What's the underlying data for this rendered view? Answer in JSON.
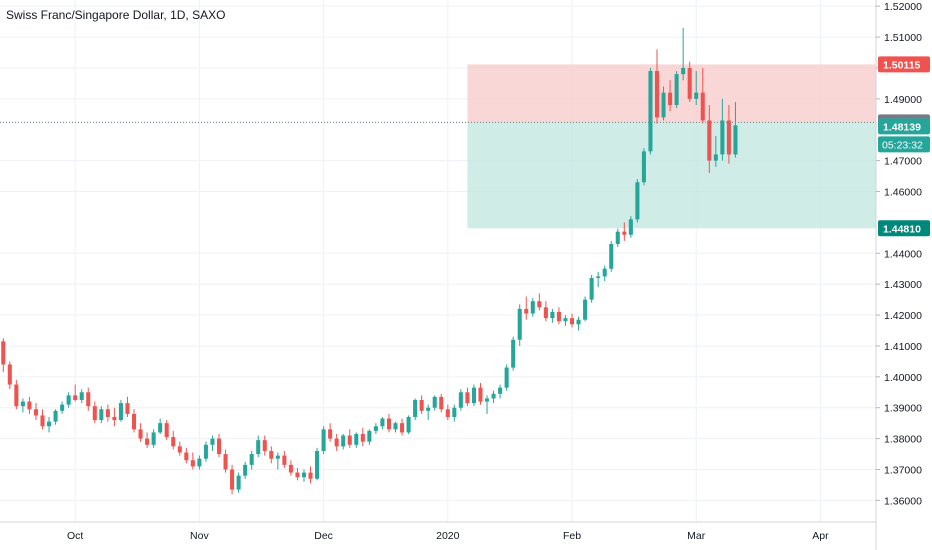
{
  "header": {
    "title": "Swiss Franc/Singapore Dollar, 1D, SAXO"
  },
  "colors": {
    "up": "#26a69a",
    "down": "#ef5350",
    "grid": "#eef1f5",
    "axis_text": "#131722",
    "stop_zone": "#f8c9c9",
    "target_zone": "#bfe6df",
    "stop_label": "#ef5350",
    "entry_label": "#787b86",
    "target_label": "#00897b",
    "last_label": "#26a69a",
    "timer_label": "#26a69a"
  },
  "chart_data": {
    "type": "candlestick",
    "title": "Swiss Franc/Singapore Dollar, 1D, SAXO",
    "y_ticks": [
      "1.52000",
      "1.51000",
      "1.50000",
      "1.49000",
      "1.47000",
      "1.46000",
      "1.44000",
      "1.43000",
      "1.42000",
      "1.41000",
      "1.40000",
      "1.39000",
      "1.38000",
      "1.37000",
      "1.36000"
    ],
    "x_ticks": [
      "Oct",
      "Nov",
      "Dec",
      "2020",
      "Feb",
      "Mar",
      "Apr"
    ],
    "ylim": [
      1.353,
      1.522
    ],
    "price_labels": {
      "stop": "1.50115",
      "entry": "1.48237",
      "last": "1.48139",
      "timer": "05:23:32",
      "target": "1.44810"
    },
    "zones": {
      "stop": [
        1.48237,
        1.50115
      ],
      "target": [
        1.4481,
        1.48237
      ]
    },
    "candles": [
      [
        1.4115,
        1.4125,
        1.4015,
        1.404
      ],
      [
        1.404,
        1.405,
        1.396,
        1.3975
      ],
      [
        1.3975,
        1.399,
        1.3895,
        1.3905
      ],
      [
        1.3905,
        1.393,
        1.3885,
        1.392
      ],
      [
        1.392,
        1.3935,
        1.388,
        1.3895
      ],
      [
        1.3895,
        1.3915,
        1.386,
        1.3875
      ],
      [
        1.3875,
        1.3895,
        1.383,
        1.384
      ],
      [
        1.384,
        1.387,
        1.382,
        1.3855
      ],
      [
        1.3855,
        1.3895,
        1.3845,
        1.389
      ],
      [
        1.389,
        1.392,
        1.388,
        1.391
      ],
      [
        1.391,
        1.395,
        1.39,
        1.394
      ],
      [
        1.394,
        1.3975,
        1.392,
        1.3925
      ],
      [
        1.3925,
        1.396,
        1.3915,
        1.395
      ],
      [
        1.395,
        1.3965,
        1.389,
        1.3905
      ],
      [
        1.3905,
        1.392,
        1.385,
        1.386
      ],
      [
        1.386,
        1.3905,
        1.385,
        1.3895
      ],
      [
        1.3895,
        1.391,
        1.3855,
        1.387
      ],
      [
        1.387,
        1.39,
        1.384,
        1.386
      ],
      [
        1.386,
        1.3925,
        1.3855,
        1.3915
      ],
      [
        1.3915,
        1.3935,
        1.387,
        1.388
      ],
      [
        1.388,
        1.3895,
        1.382,
        1.383
      ],
      [
        1.383,
        1.385,
        1.379,
        1.38
      ],
      [
        1.38,
        1.382,
        1.377,
        1.378
      ],
      [
        1.378,
        1.383,
        1.377,
        1.382
      ],
      [
        1.382,
        1.3865,
        1.3815,
        1.385
      ],
      [
        1.385,
        1.386,
        1.3795,
        1.3805
      ],
      [
        1.3805,
        1.3825,
        1.3765,
        1.3775
      ],
      [
        1.3775,
        1.379,
        1.3745,
        1.3755
      ],
      [
        1.3755,
        1.377,
        1.372,
        1.373
      ],
      [
        1.373,
        1.3755,
        1.37,
        1.371
      ],
      [
        1.371,
        1.3745,
        1.37,
        1.3735
      ],
      [
        1.3735,
        1.379,
        1.3725,
        1.378
      ],
      [
        1.378,
        1.381,
        1.376,
        1.38
      ],
      [
        1.38,
        1.3815,
        1.374,
        1.375
      ],
      [
        1.375,
        1.3765,
        1.369,
        1.37
      ],
      [
        1.37,
        1.3715,
        1.362,
        1.3635
      ],
      [
        1.3635,
        1.369,
        1.3625,
        1.368
      ],
      [
        1.368,
        1.3725,
        1.367,
        1.3715
      ],
      [
        1.3715,
        1.376,
        1.37,
        1.375
      ],
      [
        1.375,
        1.381,
        1.374,
        1.3795
      ],
      [
        1.3795,
        1.381,
        1.3745,
        1.376
      ],
      [
        1.376,
        1.3775,
        1.372,
        1.3735
      ],
      [
        1.3735,
        1.3755,
        1.37,
        1.3745
      ],
      [
        1.3745,
        1.376,
        1.3705,
        1.3715
      ],
      [
        1.3715,
        1.373,
        1.368,
        1.369
      ],
      [
        1.369,
        1.3705,
        1.3665,
        1.3675
      ],
      [
        1.3675,
        1.37,
        1.366,
        1.369
      ],
      [
        1.369,
        1.371,
        1.3655,
        1.367
      ],
      [
        1.367,
        1.377,
        1.3665,
        1.376
      ],
      [
        1.376,
        1.384,
        1.375,
        1.383
      ],
      [
        1.383,
        1.385,
        1.379,
        1.38
      ],
      [
        1.38,
        1.3815,
        1.376,
        1.3775
      ],
      [
        1.3775,
        1.3815,
        1.3765,
        1.381
      ],
      [
        1.381,
        1.383,
        1.377,
        1.378
      ],
      [
        1.378,
        1.382,
        1.377,
        1.3815
      ],
      [
        1.3815,
        1.3835,
        1.3775,
        1.379
      ],
      [
        1.379,
        1.383,
        1.378,
        1.3825
      ],
      [
        1.3825,
        1.385,
        1.3815,
        1.384
      ],
      [
        1.384,
        1.387,
        1.383,
        1.3865
      ],
      [
        1.3865,
        1.388,
        1.382,
        1.383
      ],
      [
        1.383,
        1.3855,
        1.382,
        1.385
      ],
      [
        1.385,
        1.3865,
        1.381,
        1.382
      ],
      [
        1.382,
        1.3875,
        1.3815,
        1.387
      ],
      [
        1.387,
        1.393,
        1.386,
        1.3925
      ],
      [
        1.3925,
        1.394,
        1.388,
        1.389
      ],
      [
        1.389,
        1.391,
        1.386,
        1.39
      ],
      [
        1.39,
        1.394,
        1.389,
        1.3935
      ],
      [
        1.3935,
        1.3945,
        1.3885,
        1.3895
      ],
      [
        1.3895,
        1.391,
        1.386,
        1.387
      ],
      [
        1.387,
        1.391,
        1.3855,
        1.39
      ],
      [
        1.39,
        1.396,
        1.389,
        1.395
      ],
      [
        1.395,
        1.3965,
        1.3905,
        1.3915
      ],
      [
        1.3915,
        1.3975,
        1.3905,
        1.3965
      ],
      [
        1.3965,
        1.398,
        1.391,
        1.392
      ],
      [
        1.392,
        1.394,
        1.388,
        1.393
      ],
      [
        1.393,
        1.3955,
        1.3915,
        1.3945
      ],
      [
        1.3945,
        1.3975,
        1.393,
        1.3965
      ],
      [
        1.3965,
        1.404,
        1.3955,
        1.403
      ],
      [
        1.403,
        1.413,
        1.402,
        1.412
      ],
      [
        1.412,
        1.4235,
        1.41,
        1.422
      ],
      [
        1.422,
        1.426,
        1.4185,
        1.4205
      ],
      [
        1.4205,
        1.4255,
        1.4195,
        1.4245
      ],
      [
        1.4245,
        1.427,
        1.4215,
        1.4225
      ],
      [
        1.4225,
        1.4245,
        1.418,
        1.419
      ],
      [
        1.419,
        1.422,
        1.4175,
        1.421
      ],
      [
        1.421,
        1.4225,
        1.417,
        1.418
      ],
      [
        1.418,
        1.42,
        1.4165,
        1.419
      ],
      [
        1.419,
        1.4205,
        1.416,
        1.417
      ],
      [
        1.417,
        1.4195,
        1.415,
        1.4185
      ],
      [
        1.4185,
        1.426,
        1.418,
        1.425
      ],
      [
        1.425,
        1.433,
        1.424,
        1.432
      ],
      [
        1.432,
        1.434,
        1.429,
        1.4325
      ],
      [
        1.4325,
        1.436,
        1.431,
        1.435
      ],
      [
        1.435,
        1.444,
        1.434,
        1.443
      ],
      [
        1.443,
        1.448,
        1.442,
        1.447
      ],
      [
        1.447,
        1.45,
        1.444,
        1.446
      ],
      [
        1.446,
        1.452,
        1.445,
        1.451
      ],
      [
        1.451,
        1.464,
        1.45,
        1.463
      ],
      [
        1.463,
        1.474,
        1.462,
        1.473
      ],
      [
        1.473,
        1.5,
        1.472,
        1.499
      ],
      [
        1.499,
        1.506,
        1.482,
        1.484
      ],
      [
        1.484,
        1.494,
        1.483,
        1.492
      ],
      [
        1.492,
        1.496,
        1.486,
        1.488
      ],
      [
        1.488,
        1.499,
        1.487,
        1.498
      ],
      [
        1.498,
        1.513,
        1.496,
        1.5
      ],
      [
        1.5,
        1.502,
        1.489,
        1.49
      ],
      [
        1.49,
        1.499,
        1.488,
        1.492
      ],
      [
        1.492,
        1.5,
        1.482,
        1.483
      ],
      [
        1.483,
        1.488,
        1.466,
        1.47
      ],
      [
        1.47,
        1.478,
        1.468,
        1.472
      ],
      [
        1.472,
        1.49,
        1.47,
        1.483
      ],
      [
        1.483,
        1.488,
        1.469,
        1.472
      ],
      [
        1.472,
        1.489,
        1.471,
        1.4814
      ]
    ],
    "x_tick_index": [
      11,
      30,
      49,
      68,
      87,
      106,
      125
    ],
    "visible_slots": 134
  }
}
